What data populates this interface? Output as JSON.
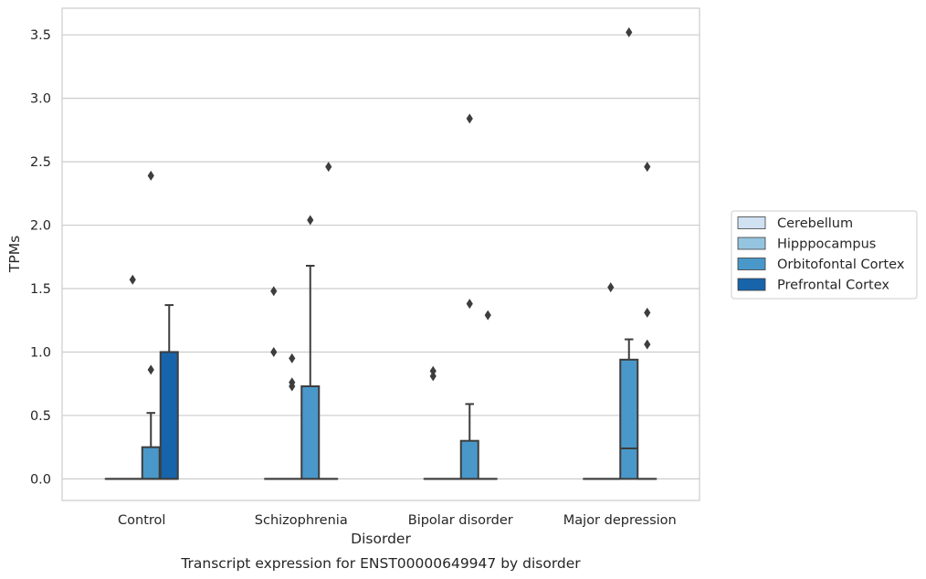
{
  "chart_data": {
    "type": "box",
    "caption": "Transcript expression for ENST00000649947 by disorder",
    "xlabel": "Disorder",
    "ylabel": "TPMs",
    "ylim": [
      -0.17,
      3.71
    ],
    "yticks": [
      "0.0",
      "0.5",
      "1.0",
      "1.5",
      "2.0",
      "2.5",
      "3.0",
      "3.5"
    ],
    "grid": "horizontal",
    "legend_position": "right",
    "categories": [
      "Control",
      "Schizophrenia",
      "Bipolar disorder",
      "Major depression"
    ],
    "series": [
      {
        "name": "Cerebellum",
        "color": "#d0e1f2",
        "boxes": [
          {
            "category": "Control",
            "q1": 0,
            "median": 0,
            "q3": 0,
            "whisker_low": 0,
            "whisker_high": 0,
            "outliers": []
          },
          {
            "category": "Schizophrenia",
            "q1": 0,
            "median": 0,
            "q3": 0,
            "whisker_low": 0,
            "whisker_high": 0,
            "outliers": [
              1.48,
              1.0
            ]
          },
          {
            "category": "Bipolar disorder",
            "q1": 0,
            "median": 0,
            "q3": 0,
            "whisker_low": 0,
            "whisker_high": 0,
            "outliers": [
              0.85,
              0.81
            ]
          },
          {
            "category": "Major depression",
            "q1": 0,
            "median": 0,
            "q3": 0,
            "whisker_low": 0,
            "whisker_high": 0,
            "outliers": []
          }
        ]
      },
      {
        "name": "Hipppocampus",
        "color": "#94c4df",
        "boxes": [
          {
            "category": "Control",
            "q1": 0,
            "median": 0,
            "q3": 0,
            "whisker_low": 0,
            "whisker_high": 0,
            "outliers": [
              1.57
            ]
          },
          {
            "category": "Schizophrenia",
            "q1": 0,
            "median": 0,
            "q3": 0,
            "whisker_low": 0,
            "whisker_high": 0,
            "outliers": [
              0.95,
              0.76,
              0.73
            ]
          },
          {
            "category": "Bipolar disorder",
            "q1": 0,
            "median": 0,
            "q3": 0,
            "whisker_low": 0,
            "whisker_high": 0,
            "outliers": []
          },
          {
            "category": "Major depression",
            "q1": 0,
            "median": 0,
            "q3": 0,
            "whisker_low": 0,
            "whisker_high": 0,
            "outliers": [
              1.51
            ]
          }
        ]
      },
      {
        "name": "Orbitofontal Cortex",
        "color": "#4a98c9",
        "boxes": [
          {
            "category": "Control",
            "q1": 0,
            "median": 0,
            "q3": 0.25,
            "whisker_low": 0,
            "whisker_high": 0.52,
            "outliers": [
              0.86,
              2.39
            ]
          },
          {
            "category": "Schizophrenia",
            "q1": 0,
            "median": 0,
            "q3": 0.73,
            "whisker_low": 0,
            "whisker_high": 1.68,
            "outliers": [
              2.04
            ]
          },
          {
            "category": "Bipolar disorder",
            "q1": 0,
            "median": 0,
            "q3": 0.3,
            "whisker_low": 0,
            "whisker_high": 0.59,
            "outliers": [
              1.38,
              2.84
            ]
          },
          {
            "category": "Major depression",
            "q1": 0,
            "median": 0.24,
            "q3": 0.94,
            "whisker_low": 0,
            "whisker_high": 1.1,
            "outliers": [
              3.52
            ]
          }
        ]
      },
      {
        "name": "Prefrontal Cortex",
        "color": "#1764ab",
        "boxes": [
          {
            "category": "Control",
            "q1": 0,
            "median": 0,
            "q3": 1.0,
            "whisker_low": 0,
            "whisker_high": 1.37,
            "outliers": []
          },
          {
            "category": "Schizophrenia",
            "q1": 0,
            "median": 0,
            "q3": 0,
            "whisker_low": 0,
            "whisker_high": 0,
            "outliers": [
              2.46
            ]
          },
          {
            "category": "Bipolar disorder",
            "q1": 0,
            "median": 0,
            "q3": 0,
            "whisker_low": 0,
            "whisker_high": 0,
            "outliers": [
              1.29
            ]
          },
          {
            "category": "Major depression",
            "q1": 0,
            "median": 0,
            "q3": 0,
            "whisker_low": 0,
            "whisker_high": 0,
            "outliers": [
              1.31,
              1.06,
              2.46
            ]
          }
        ]
      }
    ]
  }
}
